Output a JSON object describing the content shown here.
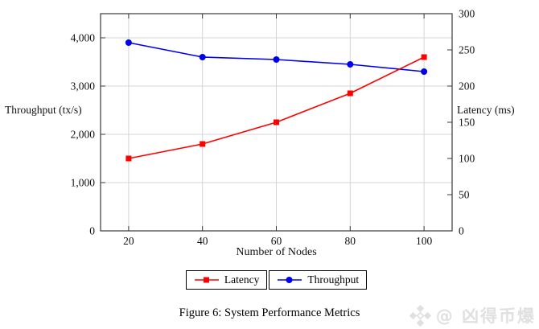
{
  "figure": {
    "caption": "Figure 6: System Performance Metrics"
  },
  "watermark": {
    "handle": "@ 凶得币爆",
    "logo_icon": "diamond-cluster-logo",
    "color": "#e0e0e0"
  },
  "chart_data": {
    "type": "line",
    "title": "",
    "xlabel": "Number of Nodes",
    "ylabel_left": "Throughput (tx/s)",
    "ylabel_right": "Latency (ms)",
    "x": [
      20,
      40,
      60,
      80,
      100
    ],
    "series": [
      {
        "name": "Throughput",
        "axis": "left",
        "color": "#0000ee",
        "marker": "circle",
        "values": [
          3900,
          3600,
          3550,
          3450,
          3300
        ]
      },
      {
        "name": "Latency",
        "axis": "right",
        "color": "#ff0000",
        "marker": "square",
        "values": [
          100,
          120,
          150,
          190,
          240
        ]
      }
    ],
    "legend_order": [
      "Latency",
      "Throughput"
    ],
    "x_ticks": {
      "values": [
        20,
        40,
        60,
        80,
        100
      ],
      "labels": [
        "20",
        "40",
        "60",
        "80",
        "100"
      ]
    },
    "left_ticks": {
      "values": [
        0,
        1000,
        2000,
        3000,
        4000
      ],
      "labels": [
        "0",
        "1,000",
        "2,000",
        "3,000",
        "4,000"
      ]
    },
    "right_ticks": {
      "values": [
        0,
        50,
        100,
        150,
        200,
        250,
        300
      ],
      "labels": [
        "0",
        "50",
        "100",
        "150",
        "200",
        "250",
        "300"
      ]
    },
    "xlim": [
      12.4,
      107.6
    ],
    "ylim_left": [
      0,
      4500
    ],
    "ylim_right": [
      0,
      300
    ],
    "grid": true,
    "grid_color": "#d5d5d5",
    "axis_color": "#3a3a3a",
    "legend_position": "below"
  }
}
